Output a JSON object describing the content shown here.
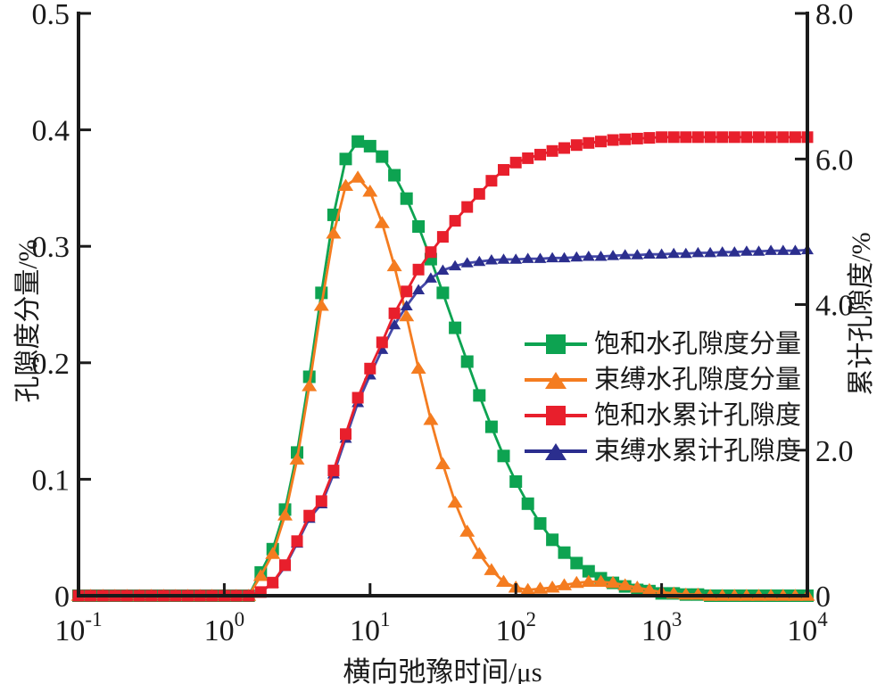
{
  "figure": {
    "background": "#ffffff",
    "axis_color": "#1a1a1a"
  },
  "axes": {
    "x": {
      "title": "横向弛豫时间/μs",
      "scale": "log",
      "range_exp": [
        -1,
        4
      ],
      "ticks": [
        {
          "base": "10",
          "exp": "-1"
        },
        {
          "base": "10",
          "exp": "0"
        },
        {
          "base": "10",
          "exp": "1"
        },
        {
          "base": "10",
          "exp": "2"
        },
        {
          "base": "10",
          "exp": "3"
        },
        {
          "base": "10",
          "exp": "4"
        }
      ]
    },
    "y_left": {
      "title": "孔隙度分量/%",
      "range": [
        0,
        0.5
      ],
      "ticks": [
        {
          "label": "0",
          "value": 0
        },
        {
          "label": "0.1",
          "value": 0.1
        },
        {
          "label": "0.2",
          "value": 0.2
        },
        {
          "label": "0.3",
          "value": 0.3
        },
        {
          "label": "0.4",
          "value": 0.4
        },
        {
          "label": "0.5",
          "value": 0.5
        }
      ]
    },
    "y_right": {
      "title": "累计孔隙度/%",
      "range": [
        0,
        8.0
      ],
      "ticks": [
        {
          "label": "0",
          "value": 0
        },
        {
          "label": "2.0",
          "value": 2.0
        },
        {
          "label": "4.0",
          "value": 4.0
        },
        {
          "label": "6.0",
          "value": 6.0
        },
        {
          "label": "8.0",
          "value": 8.0
        }
      ]
    }
  },
  "legend": {
    "items": [
      {
        "label": "饱和水孔隙度分量",
        "color": "#0da351",
        "marker": "square"
      },
      {
        "label": "束缚水孔隙度分量",
        "color": "#f47c20",
        "marker": "triangle"
      },
      {
        "label": "饱和水累计孔隙度",
        "color": "#e81f2c",
        "marker": "square"
      },
      {
        "label": "束缚水累计孔隙度",
        "color": "#2b2e8e",
        "marker": "triangle"
      }
    ]
  },
  "chart_data": {
    "type": "line",
    "x_scale": "log",
    "xlabel": "横向弛豫时间/μs",
    "ylabel_left": "孔隙度分量/%",
    "ylabel_right": "累计孔隙度/%",
    "xlim": [
      0.1,
      10000
    ],
    "ylim_left": [
      0,
      0.5
    ],
    "ylim_right": [
      0,
      8.0
    ],
    "grid": false,
    "legend_position": "center-right",
    "x": [
      0.1,
      0.121,
      0.147,
      0.178,
      0.215,
      0.261,
      0.316,
      0.383,
      0.464,
      0.562,
      0.681,
      0.825,
      1,
      1.21,
      1.47,
      1.78,
      2.15,
      2.61,
      3.16,
      3.83,
      4.64,
      5.62,
      6.81,
      8.25,
      10,
      12.1,
      14.7,
      17.8,
      21.5,
      26.1,
      31.6,
      38.3,
      46.4,
      56.2,
      68.1,
      82.5,
      100,
      121,
      147,
      178,
      215,
      261,
      316,
      383,
      464,
      562,
      681,
      825,
      1000,
      1211,
      1468,
      1778,
      2154,
      2610,
      3162,
      3831,
      4642,
      5623,
      6813,
      8254,
      10000
    ],
    "series": [
      {
        "name": "饱和水孔隙度分量",
        "axis": "left",
        "color": "#0da351",
        "line_color": "#0da351",
        "marker": "square",
        "values": [
          0,
          0,
          0,
          0,
          0,
          0,
          0,
          0,
          0,
          0,
          0,
          0,
          0,
          0,
          0,
          0.02,
          0.04,
          0.074,
          0.123,
          0.188,
          0.26,
          0.327,
          0.375,
          0.39,
          0.386,
          0.377,
          0.361,
          0.341,
          0.317,
          0.289,
          0.26,
          0.23,
          0.201,
          0.172,
          0.145,
          0.12,
          0.098,
          0.079,
          0.062,
          0.048,
          0.037,
          0.028,
          0.021,
          0.015,
          0.011,
          0.008,
          0.005,
          0.004,
          0.002,
          0.002,
          0.001,
          0.001,
          0,
          0,
          0,
          0,
          0,
          0,
          0,
          0,
          0
        ]
      },
      {
        "name": "束缚水孔隙度分量",
        "axis": "left",
        "color": "#f47c20",
        "line_color": "#f47c20",
        "marker": "triangle",
        "values": [
          0,
          0,
          0,
          0,
          0,
          0,
          0,
          0,
          0,
          0,
          0,
          0,
          0,
          0,
          0,
          0.017,
          0.036,
          0.069,
          0.117,
          0.18,
          0.249,
          0.311,
          0.352,
          0.359,
          0.347,
          0.32,
          0.283,
          0.24,
          0.195,
          0.151,
          0.113,
          0.08,
          0.055,
          0.036,
          0.022,
          0.012,
          0.007,
          0.005,
          0.006,
          0.007,
          0.009,
          0.011,
          0.012,
          0.012,
          0.011,
          0.009,
          0.007,
          0.005,
          0.003,
          0.002,
          0.001,
          0.001,
          0,
          0,
          0,
          0,
          0,
          0,
          0,
          0,
          0
        ]
      },
      {
        "name": "束缚水累计孔隙度",
        "axis": "right",
        "color": "#2b2e8e",
        "line_color": "#4549a8",
        "marker": "triangle",
        "values": [
          0,
          0,
          0,
          0,
          0,
          0,
          0,
          0,
          0,
          0,
          0,
          0,
          0,
          0,
          0,
          0.05,
          0.17,
          0.4,
          0.72,
          1.06,
          1.26,
          1.67,
          2.16,
          2.65,
          3.03,
          3.38,
          3.72,
          3.98,
          4.2,
          4.36,
          4.47,
          4.53,
          4.57,
          4.59,
          4.61,
          4.62,
          4.62,
          4.63,
          4.63,
          4.64,
          4.64,
          4.65,
          4.66,
          4.66,
          4.67,
          4.68,
          4.68,
          4.69,
          4.69,
          4.7,
          4.7,
          4.71,
          4.71,
          4.72,
          4.72,
          4.73,
          4.73,
          4.74,
          4.74,
          4.74,
          4.75
        ]
      },
      {
        "name": "饱和水累计孔隙度",
        "axis": "right",
        "color": "#e81f2c",
        "line_color": "#e81f2c",
        "marker": "square",
        "values": [
          0,
          0,
          0,
          0,
          0,
          0,
          0,
          0,
          0,
          0,
          0,
          0,
          0,
          0,
          0,
          0.05,
          0.18,
          0.42,
          0.75,
          1.1,
          1.3,
          1.72,
          2.22,
          2.72,
          3.12,
          3.48,
          3.88,
          4.18,
          4.48,
          4.72,
          4.93,
          5.15,
          5.34,
          5.52,
          5.7,
          5.85,
          5.95,
          6.01,
          6.06,
          6.11,
          6.15,
          6.19,
          6.22,
          6.24,
          6.26,
          6.27,
          6.28,
          6.29,
          6.3,
          6.3,
          6.3,
          6.3,
          6.3,
          6.3,
          6.3,
          6.3,
          6.3,
          6.3,
          6.3,
          6.3,
          6.3
        ]
      }
    ]
  }
}
